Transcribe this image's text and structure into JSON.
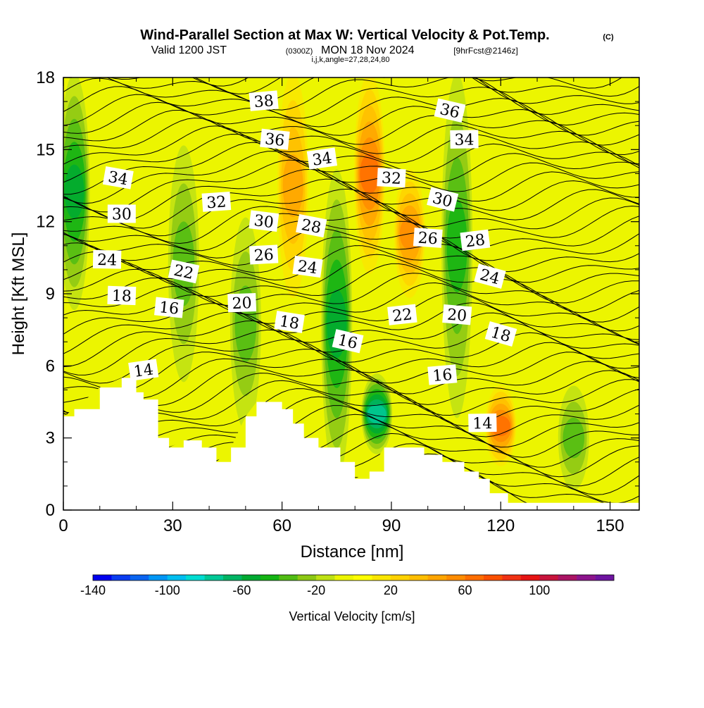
{
  "header": {
    "title": "Wind-Parallel Section at Max W: Vertical Velocity & Pot.Temp.",
    "copyright": "(C)",
    "valid_prefix": "Valid 1200 JST",
    "valid_utc": "(0300Z)",
    "valid_date": "MON 18 Nov 2024",
    "forecast": "[9hrFcst@2146z]",
    "indices": "i,j,k,angle=27,28,24,80"
  },
  "chart_data": {
    "type": "heatmap",
    "xlabel": "Distance [nm]",
    "ylabel": "Height [Kft MSL]",
    "xlim": [
      0,
      158
    ],
    "ylim": [
      0,
      18
    ],
    "x_ticks": [
      "0",
      "30",
      "60",
      "90",
      "120",
      "150"
    ],
    "y_ticks": [
      "0",
      "3",
      "6",
      "9",
      "12",
      "15",
      "18"
    ],
    "colorbar": {
      "label": "Vertical Velocity [cm/s]",
      "range": [
        -140,
        140
      ],
      "step": 10,
      "tick_labels": [
        "-140",
        "-100",
        "-60",
        "-20",
        "20",
        "60",
        "100"
      ],
      "colors": [
        "#0000ee",
        "#0a3cf0",
        "#0a64f0",
        "#0096f5",
        "#00bef0",
        "#00dcd2",
        "#00c896",
        "#00b464",
        "#00aa32",
        "#14b414",
        "#50bc14",
        "#8cc814",
        "#bee114",
        "#ecf500",
        "#ffff00",
        "#fae600",
        "#ffd200",
        "#ffbe00",
        "#ffa500",
        "#ff8c00",
        "#ff6e00",
        "#fa5000",
        "#f03214",
        "#e61414",
        "#c8143c",
        "#aa1464",
        "#8c148c",
        "#6e14a0"
      ]
    },
    "terrain_kft": [
      [
        0,
        3.9
      ],
      [
        3,
        4.2
      ],
      [
        10,
        5.1
      ],
      [
        16,
        5.5
      ],
      [
        19,
        5.5
      ],
      [
        20,
        4.9
      ],
      [
        22,
        4.6
      ],
      [
        26,
        3.0
      ],
      [
        29,
        2.6
      ],
      [
        33,
        2.9
      ],
      [
        38,
        2.6
      ],
      [
        42,
        2.0
      ],
      [
        46,
        2.6
      ],
      [
        50,
        3.9
      ],
      [
        53,
        4.5
      ],
      [
        57,
        4.5
      ],
      [
        60,
        4.2
      ],
      [
        63,
        3.6
      ],
      [
        66,
        3.0
      ],
      [
        70,
        2.6
      ],
      [
        76,
        2.0
      ],
      [
        80,
        1.3
      ],
      [
        84,
        1.6
      ],
      [
        88,
        2.6
      ],
      [
        92,
        2.6
      ],
      [
        99,
        2.3
      ],
      [
        104,
        2.0
      ],
      [
        110,
        1.6
      ],
      [
        114,
        1.3
      ],
      [
        117,
        0.7
      ],
      [
        122,
        0.3
      ],
      [
        158,
        0.3
      ]
    ],
    "theta_contour_labels": [
      "14",
      "14",
      "16",
      "16",
      "16",
      "18",
      "18",
      "18",
      "20",
      "20",
      "22",
      "22",
      "24",
      "24",
      "24",
      "26",
      "26",
      "28",
      "28",
      "30",
      "30",
      "30",
      "32",
      "32",
      "34",
      "34",
      "34",
      "36",
      "36",
      "38"
    ],
    "vertical_velocity_features": [
      {
        "x": 3,
        "z0": 8.5,
        "z1": 18,
        "w": -50
      },
      {
        "x": 33,
        "z0": 5.5,
        "z1": 15,
        "w": -30
      },
      {
        "x": 50,
        "z0": 3.5,
        "z1": 12,
        "w": -30
      },
      {
        "x": 75,
        "z0": 1.5,
        "z1": 14,
        "w": -45
      },
      {
        "x": 86,
        "z0": 2.5,
        "z1": 5.5,
        "w": -70
      },
      {
        "x": 108,
        "z0": 4,
        "z1": 18,
        "w": -40
      },
      {
        "x": 140,
        "z0": 1,
        "z1": 5,
        "w": -30
      },
      {
        "x": 63,
        "z0": 9,
        "z1": 18,
        "w": 35
      },
      {
        "x": 84,
        "z0": 10,
        "z1": 18,
        "w": 55
      },
      {
        "x": 95,
        "z0": 9,
        "z1": 14,
        "w": 50
      },
      {
        "x": 120,
        "z0": 2,
        "z1": 5,
        "w": 55
      }
    ]
  }
}
